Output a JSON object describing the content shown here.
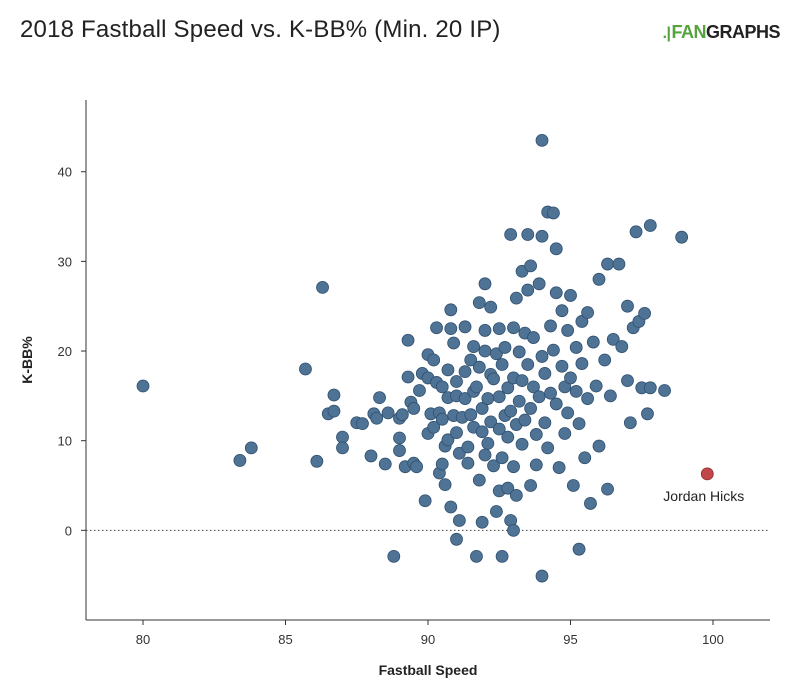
{
  "header": {
    "title": "2018 Fastball Speed vs. K-BB% (Min. 20 IP)",
    "logo_prefix": "FAN",
    "logo_suffix": "GRAPHS"
  },
  "colors": {
    "point": "#4f7395",
    "point_stroke": "#2f4f6f",
    "highlight": "#c0474a",
    "highlight_stroke": "#8f2a2d",
    "axis": "#333333"
  },
  "chart_data": {
    "type": "scatter",
    "title": "2018 Fastball Speed vs. K-BB% (Min. 20 IP)",
    "xlabel": "Fastball Speed",
    "ylabel": "K-BB%",
    "xlim": [
      78,
      102
    ],
    "ylim": [
      -10,
      48
    ],
    "xticks": [
      80,
      85,
      90,
      95,
      100
    ],
    "yticks": [
      0,
      10,
      20,
      30,
      40
    ],
    "reference_line": {
      "y": 0,
      "style": "dotted"
    },
    "grid": false,
    "annotation": {
      "label": "Jordan Hicks",
      "x": 99.8,
      "y": 6.3
    },
    "points": [
      [
        80.0,
        16.1
      ],
      [
        83.4,
        7.8
      ],
      [
        83.8,
        9.2
      ],
      [
        85.7,
        18.0
      ],
      [
        86.1,
        7.7
      ],
      [
        86.3,
        27.1
      ],
      [
        86.5,
        13.0
      ],
      [
        86.7,
        13.3
      ],
      [
        86.7,
        15.1
      ],
      [
        87.0,
        10.4
      ],
      [
        87.0,
        9.2
      ],
      [
        87.5,
        12.0
      ],
      [
        87.7,
        11.9
      ],
      [
        88.0,
        8.3
      ],
      [
        88.1,
        13.0
      ],
      [
        88.2,
        12.5
      ],
      [
        88.3,
        14.8
      ],
      [
        88.5,
        7.4
      ],
      [
        88.6,
        13.1
      ],
      [
        88.8,
        -2.9
      ],
      [
        89.0,
        12.5
      ],
      [
        89.0,
        10.3
      ],
      [
        89.0,
        8.9
      ],
      [
        89.1,
        12.9
      ],
      [
        89.2,
        7.1
      ],
      [
        89.3,
        21.2
      ],
      [
        89.3,
        17.1
      ],
      [
        89.4,
        14.3
      ],
      [
        89.5,
        13.6
      ],
      [
        89.5,
        7.5
      ],
      [
        89.6,
        7.1
      ],
      [
        89.7,
        15.6
      ],
      [
        89.8,
        17.5
      ],
      [
        89.9,
        3.3
      ],
      [
        90.0,
        10.8
      ],
      [
        90.0,
        19.6
      ],
      [
        90.0,
        17.0
      ],
      [
        90.1,
        13.0
      ],
      [
        90.2,
        19.0
      ],
      [
        90.2,
        11.5
      ],
      [
        90.3,
        22.6
      ],
      [
        90.3,
        16.5
      ],
      [
        90.4,
        13.1
      ],
      [
        90.4,
        6.4
      ],
      [
        90.5,
        7.4
      ],
      [
        90.5,
        12.4
      ],
      [
        90.5,
        16.0
      ],
      [
        90.6,
        9.4
      ],
      [
        90.6,
        5.1
      ],
      [
        90.7,
        10.1
      ],
      [
        90.7,
        14.8
      ],
      [
        90.7,
        17.9
      ],
      [
        90.8,
        22.5
      ],
      [
        90.8,
        24.6
      ],
      [
        90.8,
        2.6
      ],
      [
        90.9,
        20.9
      ],
      [
        90.9,
        12.8
      ],
      [
        91.0,
        15.0
      ],
      [
        91.0,
        10.9
      ],
      [
        91.0,
        16.6
      ],
      [
        91.0,
        -1.0
      ],
      [
        91.1,
        1.1
      ],
      [
        91.1,
        8.6
      ],
      [
        91.2,
        12.6
      ],
      [
        91.3,
        22.7
      ],
      [
        91.3,
        17.7
      ],
      [
        91.3,
        14.7
      ],
      [
        91.4,
        9.3
      ],
      [
        91.4,
        7.5
      ],
      [
        91.5,
        12.9
      ],
      [
        91.5,
        19.0
      ],
      [
        91.6,
        11.5
      ],
      [
        91.6,
        15.5
      ],
      [
        91.6,
        20.5
      ],
      [
        91.7,
        -2.9
      ],
      [
        91.7,
        16.0
      ],
      [
        91.8,
        18.2
      ],
      [
        91.8,
        5.6
      ],
      [
        91.8,
        25.4
      ],
      [
        91.9,
        0.9
      ],
      [
        91.9,
        11.0
      ],
      [
        91.9,
        13.6
      ],
      [
        92.0,
        20.0
      ],
      [
        92.0,
        22.3
      ],
      [
        92.0,
        27.5
      ],
      [
        92.0,
        8.4
      ],
      [
        92.1,
        9.7
      ],
      [
        92.1,
        14.7
      ],
      [
        92.2,
        24.9
      ],
      [
        92.2,
        17.4
      ],
      [
        92.2,
        12.1
      ],
      [
        92.3,
        7.2
      ],
      [
        92.3,
        16.9
      ],
      [
        92.4,
        19.7
      ],
      [
        92.4,
        2.1
      ],
      [
        92.5,
        22.5
      ],
      [
        92.5,
        4.4
      ],
      [
        92.5,
        11.3
      ],
      [
        92.5,
        14.9
      ],
      [
        92.6,
        -2.9
      ],
      [
        92.6,
        18.5
      ],
      [
        92.6,
        8.1
      ],
      [
        92.7,
        12.8
      ],
      [
        92.7,
        20.4
      ],
      [
        92.8,
        15.9
      ],
      [
        92.8,
        10.4
      ],
      [
        92.8,
        4.7
      ],
      [
        92.9,
        33.0
      ],
      [
        92.9,
        13.3
      ],
      [
        92.9,
        1.1
      ],
      [
        93.0,
        17.0
      ],
      [
        93.0,
        22.6
      ],
      [
        93.0,
        7.1
      ],
      [
        93.0,
        0.0
      ],
      [
        93.1,
        25.9
      ],
      [
        93.1,
        11.8
      ],
      [
        93.1,
        3.9
      ],
      [
        93.2,
        19.9
      ],
      [
        93.2,
        14.4
      ],
      [
        93.3,
        28.9
      ],
      [
        93.3,
        16.7
      ],
      [
        93.3,
        9.6
      ],
      [
        93.4,
        12.3
      ],
      [
        93.4,
        22.0
      ],
      [
        93.5,
        26.8
      ],
      [
        93.5,
        18.5
      ],
      [
        93.5,
        33.0
      ],
      [
        93.6,
        29.5
      ],
      [
        93.6,
        13.6
      ],
      [
        93.6,
        5.0
      ],
      [
        93.7,
        21.5
      ],
      [
        93.7,
        16.0
      ],
      [
        93.8,
        10.7
      ],
      [
        93.8,
        7.3
      ],
      [
        93.9,
        27.5
      ],
      [
        93.9,
        14.9
      ],
      [
        94.0,
        43.5
      ],
      [
        94.0,
        32.8
      ],
      [
        94.0,
        19.4
      ],
      [
        94.0,
        -5.1
      ],
      [
        94.1,
        17.5
      ],
      [
        94.1,
        12.0
      ],
      [
        94.2,
        35.5
      ],
      [
        94.2,
        9.2
      ],
      [
        94.3,
        22.8
      ],
      [
        94.3,
        15.3
      ],
      [
        94.4,
        35.4
      ],
      [
        94.4,
        20.1
      ],
      [
        94.5,
        31.4
      ],
      [
        94.5,
        26.5
      ],
      [
        94.5,
        14.1
      ],
      [
        94.6,
        7.0
      ],
      [
        94.7,
        18.3
      ],
      [
        94.7,
        24.5
      ],
      [
        94.8,
        16.0
      ],
      [
        94.8,
        10.8
      ],
      [
        94.9,
        22.3
      ],
      [
        94.9,
        13.1
      ],
      [
        95.0,
        26.2
      ],
      [
        95.0,
        17.0
      ],
      [
        95.1,
        5.0
      ],
      [
        95.2,
        20.4
      ],
      [
        95.2,
        15.5
      ],
      [
        95.3,
        -2.1
      ],
      [
        95.3,
        11.9
      ],
      [
        95.4,
        23.3
      ],
      [
        95.4,
        18.6
      ],
      [
        95.5,
        8.1
      ],
      [
        95.6,
        24.3
      ],
      [
        95.6,
        14.7
      ],
      [
        95.7,
        3.0
      ],
      [
        95.8,
        21.0
      ],
      [
        95.9,
        16.1
      ],
      [
        96.0,
        28.0
      ],
      [
        96.0,
        9.4
      ],
      [
        96.2,
        19.0
      ],
      [
        96.3,
        29.7
      ],
      [
        96.3,
        4.6
      ],
      [
        96.4,
        15.0
      ],
      [
        96.5,
        21.3
      ],
      [
        96.7,
        29.7
      ],
      [
        96.8,
        20.5
      ],
      [
        97.0,
        25.0
      ],
      [
        97.0,
        16.7
      ],
      [
        97.1,
        12.0
      ],
      [
        97.2,
        22.6
      ],
      [
        97.3,
        33.3
      ],
      [
        97.4,
        23.3
      ],
      [
        97.5,
        15.9
      ],
      [
        97.6,
        24.2
      ],
      [
        97.7,
        13.0
      ],
      [
        97.8,
        34.0
      ],
      [
        97.8,
        15.9
      ],
      [
        98.3,
        15.6
      ],
      [
        98.9,
        32.7
      ]
    ]
  }
}
